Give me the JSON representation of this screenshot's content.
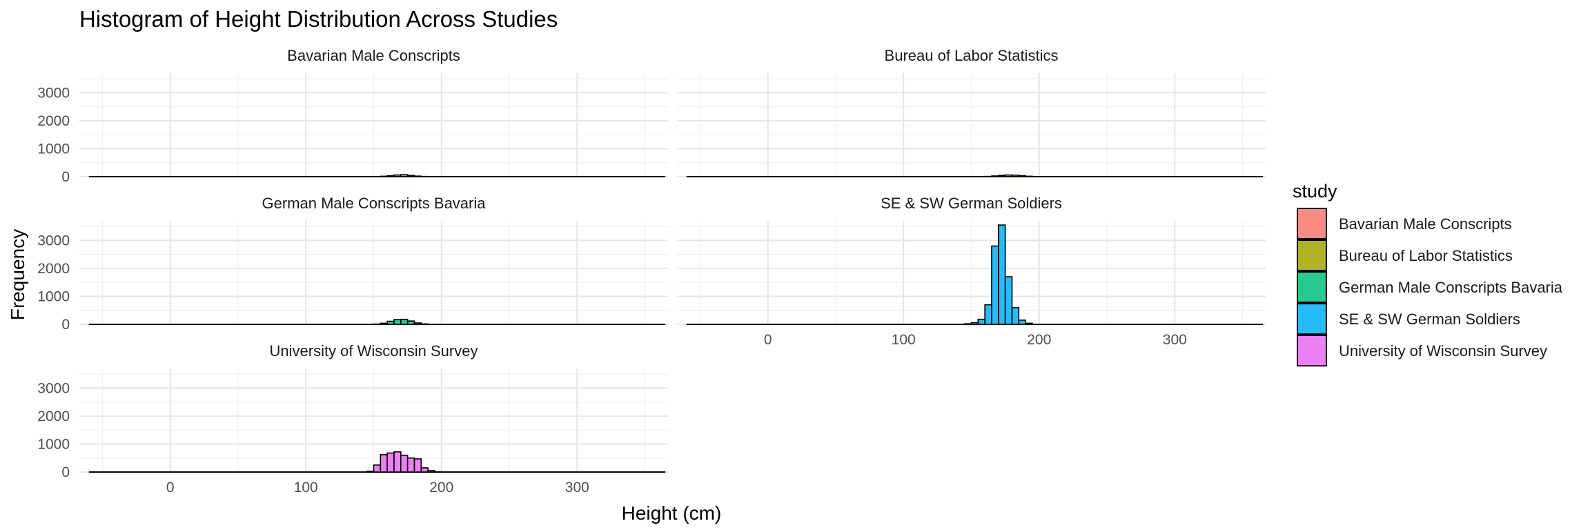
{
  "chart_data": {
    "type": "bar",
    "title": "Histogram of Height Distribution Across Studies",
    "xlabel": "Height (cm)",
    "ylabel": "Frequency",
    "xlim": [
      -67,
      367
    ],
    "ylim": [
      0,
      3700
    ],
    "x_ticks": [
      0,
      100,
      200,
      300
    ],
    "y_ticks": [
      0,
      1000,
      2000,
      3000
    ],
    "y_tick_labels": [
      "0",
      "1000",
      "2000",
      "3000"
    ],
    "x_tick_labels": [
      "0",
      "100",
      "200",
      "300"
    ],
    "grid": true,
    "bin_width": 5,
    "x_range": [
      -60,
      365
    ],
    "legend": {
      "title": "study",
      "position": "right",
      "entries": [
        {
          "label": "Bavarian Male Conscripts",
          "color": "#F8766D"
        },
        {
          "label": "Bureau of Labor Statistics",
          "color": "#A3A500"
        },
        {
          "label": "German Male Conscripts Bavaria",
          "color": "#00BF7D"
        },
        {
          "label": "SE & SW German Soldiers",
          "color": "#00B0F6"
        },
        {
          "label": "University of Wisconsin Survey",
          "color": "#E76BF3"
        }
      ]
    },
    "panels": [
      {
        "name": "Bavarian Male Conscripts",
        "color": "#F8766D",
        "bins": [
          [
            150,
            5
          ],
          [
            155,
            15
          ],
          [
            160,
            35
          ],
          [
            165,
            60
          ],
          [
            170,
            70
          ],
          [
            175,
            45
          ],
          [
            180,
            20
          ],
          [
            185,
            8
          ]
        ]
      },
      {
        "name": "Bureau of Labor Statistics",
        "color": "#A3A500",
        "bins": [
          [
            160,
            10
          ],
          [
            165,
            25
          ],
          [
            170,
            45
          ],
          [
            175,
            60
          ],
          [
            180,
            55
          ],
          [
            185,
            35
          ],
          [
            190,
            15
          ],
          [
            195,
            5
          ]
        ]
      },
      {
        "name": "German Male Conscripts Bavaria",
        "color": "#00BF7D",
        "bins": [
          [
            150,
            10
          ],
          [
            155,
            40
          ],
          [
            160,
            110
          ],
          [
            165,
            170
          ],
          [
            170,
            180
          ],
          [
            175,
            120
          ],
          [
            180,
            50
          ],
          [
            185,
            15
          ]
        ]
      },
      {
        "name": "SE & SW German Soldiers",
        "color": "#00B0F6",
        "bins": [
          [
            145,
            20
          ],
          [
            150,
            60
          ],
          [
            155,
            180
          ],
          [
            160,
            700
          ],
          [
            165,
            2800
          ],
          [
            170,
            3550
          ],
          [
            175,
            1700
          ],
          [
            180,
            600
          ],
          [
            185,
            150
          ],
          [
            190,
            40
          ]
        ]
      },
      {
        "name": "University of Wisconsin Survey",
        "color": "#E76BF3",
        "bins": [
          [
            145,
            30
          ],
          [
            150,
            250
          ],
          [
            155,
            620
          ],
          [
            160,
            680
          ],
          [
            165,
            720
          ],
          [
            170,
            600
          ],
          [
            175,
            500
          ],
          [
            180,
            470
          ],
          [
            185,
            150
          ],
          [
            190,
            50
          ],
          [
            195,
            10
          ]
        ]
      }
    ]
  }
}
